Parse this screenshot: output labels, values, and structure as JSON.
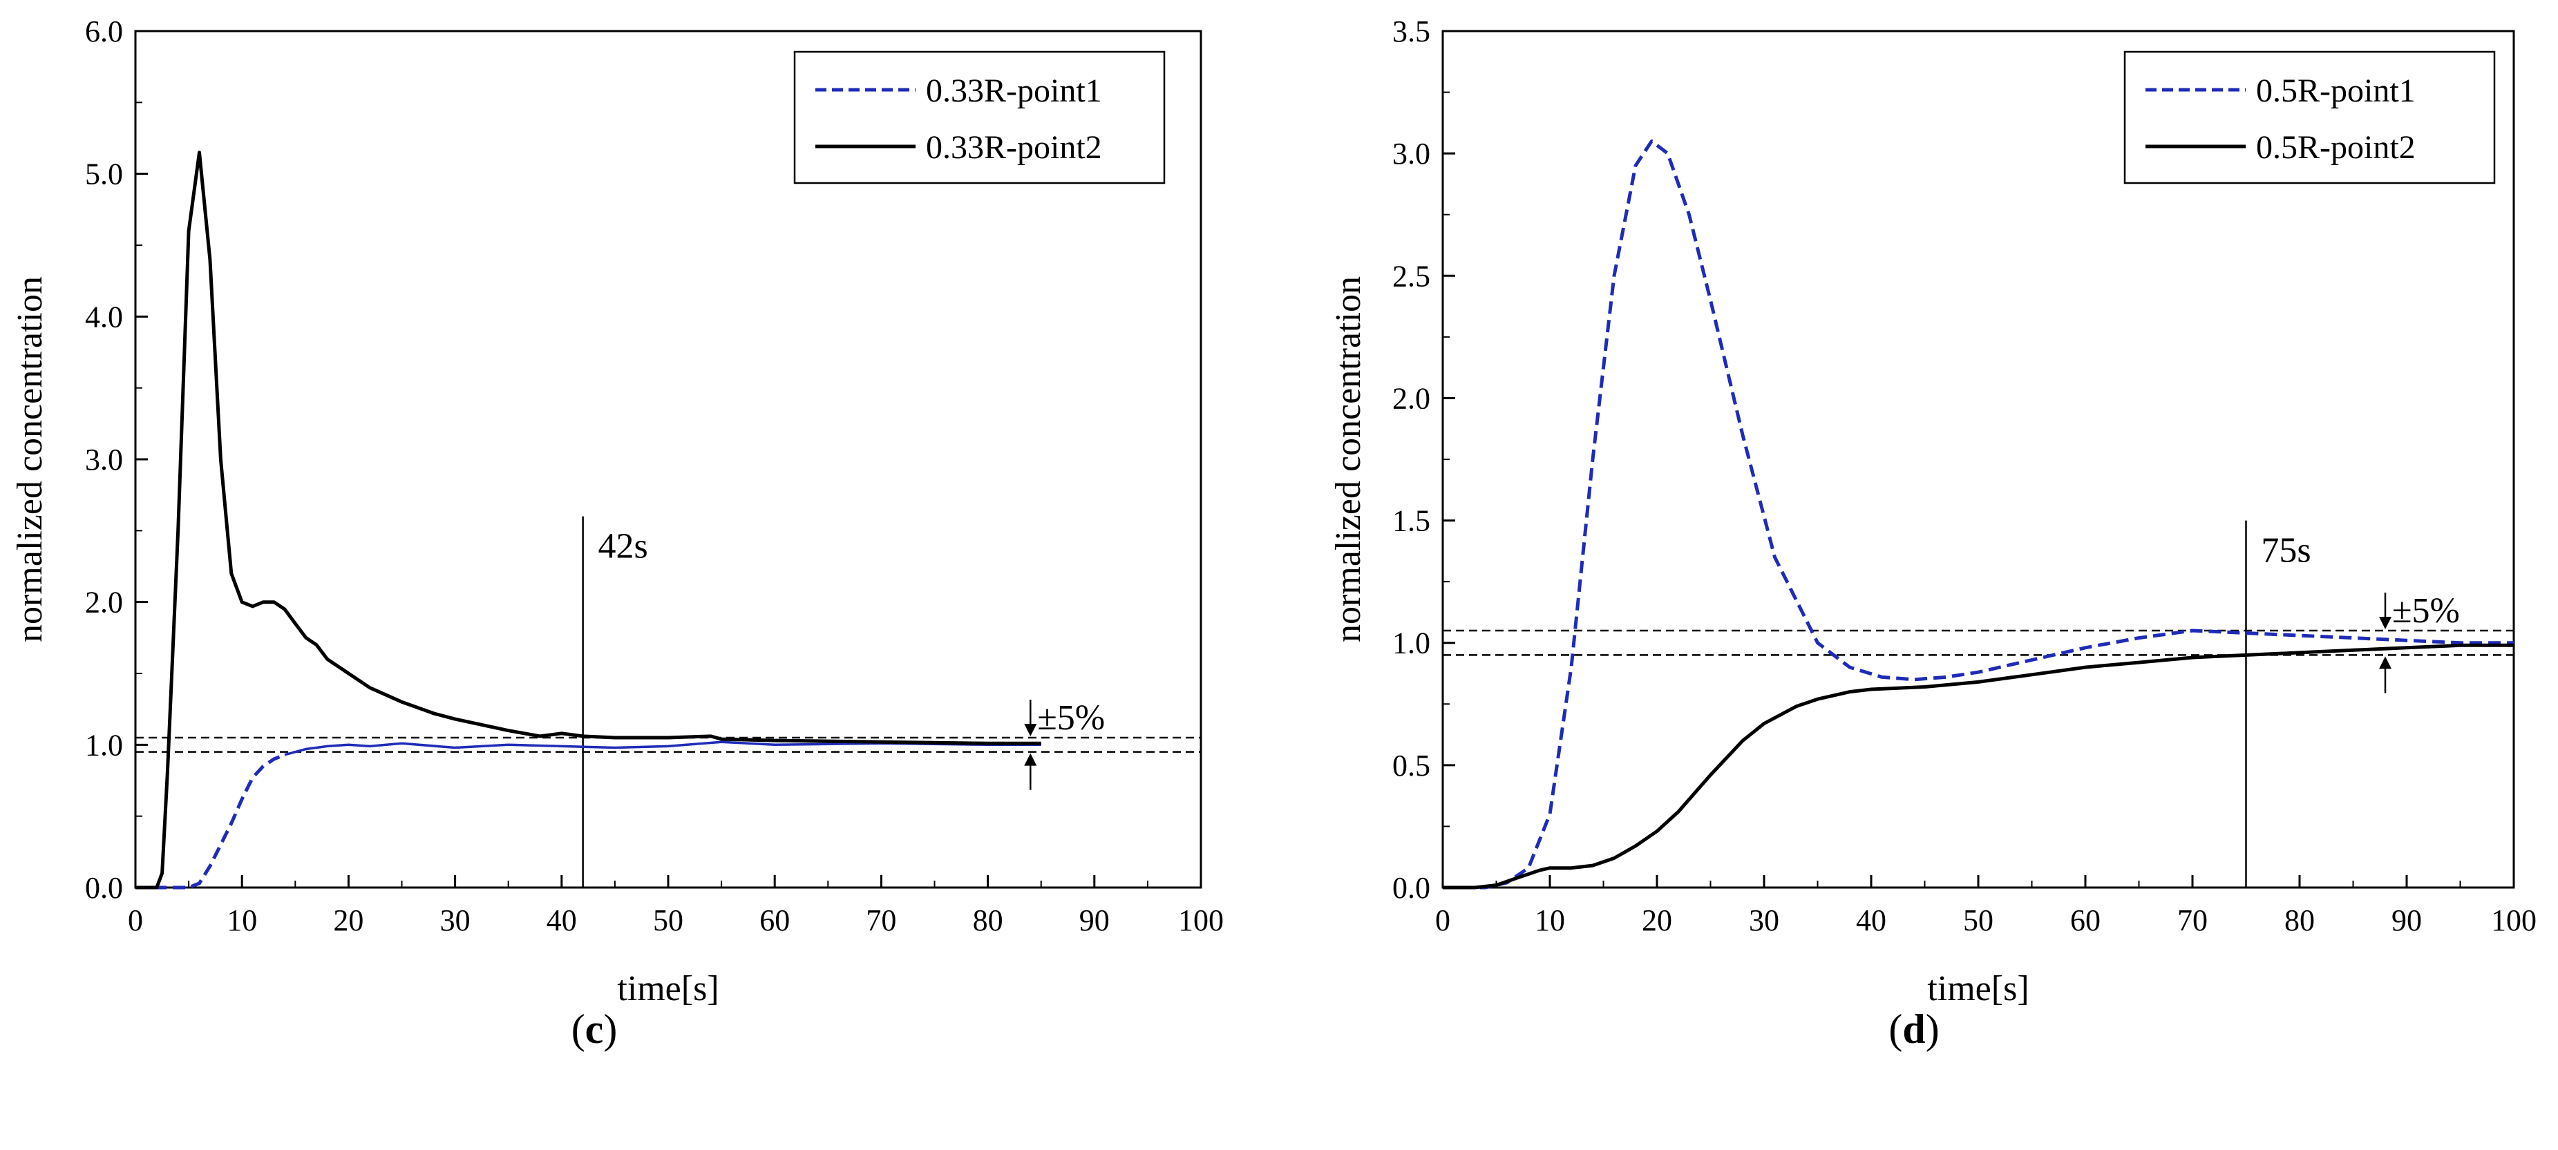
{
  "chart_data": [
    {
      "type": "line",
      "panel_label": "c",
      "xlabel": "time[s]",
      "ylabel": "normalized concentration",
      "xlim": [
        0,
        100
      ],
      "ylim": [
        0,
        6
      ],
      "xticks": [
        0,
        10,
        20,
        30,
        40,
        50,
        60,
        70,
        80,
        90,
        100
      ],
      "yticks": [
        0.0,
        1.0,
        2.0,
        3.0,
        4.0,
        5.0,
        6.0
      ],
      "ytick_labels": [
        "0.0",
        "1.0",
        "2.0",
        "3.0",
        "4.0",
        "5.0",
        "6.0"
      ],
      "grid": false,
      "legend_position": "top-right",
      "series": [
        {
          "name": "0.33R-point1",
          "color": "#1f2bb8",
          "style": "dashed",
          "x": [
            0,
            1,
            2,
            3,
            4,
            5,
            6,
            7,
            8,
            9,
            10,
            11,
            12,
            13,
            14,
            15,
            16,
            17,
            18,
            20,
            22,
            25,
            30,
            35,
            40,
            45,
            50,
            55,
            60,
            70,
            80,
            85
          ],
          "y": [
            0,
            0,
            0,
            0,
            0,
            0,
            0.03,
            0.15,
            0.3,
            0.45,
            0.62,
            0.77,
            0.85,
            0.9,
            0.93,
            0.95,
            0.97,
            0.98,
            0.99,
            1.0,
            0.99,
            1.01,
            0.98,
            1.0,
            0.99,
            0.98,
            0.99,
            1.02,
            1.0,
            1.01,
            1.0,
            1.0
          ],
          "solid_from_x": 14
        },
        {
          "name": "0.33R-point2",
          "color": "#000000",
          "style": "solid",
          "x": [
            0,
            1,
            2,
            2.5,
            3,
            4,
            5,
            6,
            7,
            8,
            9,
            10,
            11,
            12,
            13,
            14,
            15,
            16,
            17,
            18,
            20,
            22,
            25,
            28,
            30,
            35,
            38,
            40,
            42,
            45,
            50,
            54,
            55,
            60,
            70,
            80,
            85
          ],
          "y": [
            0,
            0,
            0,
            0.1,
            0.8,
            2.5,
            4.6,
            5.15,
            4.4,
            3.0,
            2.2,
            2.0,
            1.97,
            2.0,
            2.0,
            1.95,
            1.85,
            1.75,
            1.7,
            1.6,
            1.5,
            1.4,
            1.3,
            1.22,
            1.18,
            1.1,
            1.06,
            1.08,
            1.06,
            1.05,
            1.05,
            1.06,
            1.04,
            1.03,
            1.02,
            1.01,
            1.01
          ]
        }
      ],
      "bands": {
        "upper": 1.05,
        "lower": 0.95,
        "label": "±5%"
      },
      "vline": {
        "x": 42,
        "y_top": 2.6,
        "label": "42s"
      }
    },
    {
      "type": "line",
      "panel_label": "d",
      "xlabel": "time[s]",
      "ylabel": "normalized concentration",
      "xlim": [
        0,
        100
      ],
      "ylim": [
        0,
        3.5
      ],
      "xticks": [
        0,
        10,
        20,
        30,
        40,
        50,
        60,
        70,
        80,
        90,
        100
      ],
      "yticks": [
        0.0,
        0.5,
        1.0,
        1.5,
        2.0,
        2.5,
        3.0,
        3.5
      ],
      "ytick_labels": [
        "0.0",
        "0.5",
        "1.0",
        "1.5",
        "2.0",
        "2.5",
        "3.0",
        "3.5"
      ],
      "grid": false,
      "legend_position": "top-right",
      "series": [
        {
          "name": "0.5R-point1",
          "color": "#1f2bb8",
          "style": "dashed",
          "x": [
            0,
            4,
            6,
            8,
            10,
            12,
            14,
            16,
            18,
            19.5,
            21,
            23,
            25,
            28,
            31,
            35,
            38,
            41,
            44,
            47,
            50,
            55,
            60,
            65,
            70,
            75,
            80,
            85,
            90,
            95,
            100
          ],
          "y": [
            0,
            0,
            0.02,
            0.08,
            0.3,
            0.9,
            1.75,
            2.5,
            2.95,
            3.05,
            3.0,
            2.75,
            2.4,
            1.85,
            1.35,
            1.0,
            0.9,
            0.86,
            0.85,
            0.86,
            0.88,
            0.93,
            0.98,
            1.02,
            1.05,
            1.04,
            1.03,
            1.02,
            1.01,
            1.0,
            1.0
          ]
        },
        {
          "name": "0.5R-point2",
          "color": "#000000",
          "style": "solid",
          "x": [
            0,
            3,
            5,
            7,
            9,
            10,
            12,
            14,
            16,
            18,
            20,
            22,
            25,
            28,
            30,
            33,
            35,
            38,
            40,
            45,
            50,
            55,
            60,
            65,
            70,
            75,
            80,
            85,
            90,
            95,
            100
          ],
          "y": [
            0,
            0,
            0.01,
            0.04,
            0.07,
            0.08,
            0.08,
            0.09,
            0.12,
            0.17,
            0.23,
            0.31,
            0.46,
            0.6,
            0.67,
            0.74,
            0.77,
            0.8,
            0.81,
            0.82,
            0.84,
            0.87,
            0.9,
            0.92,
            0.94,
            0.95,
            0.96,
            0.97,
            0.98,
            0.99,
            0.99
          ]
        }
      ],
      "bands": {
        "upper": 1.05,
        "lower": 0.95,
        "label": "±5%"
      },
      "vline": {
        "x": 75,
        "y_top": 1.5,
        "label": "75s"
      }
    }
  ]
}
